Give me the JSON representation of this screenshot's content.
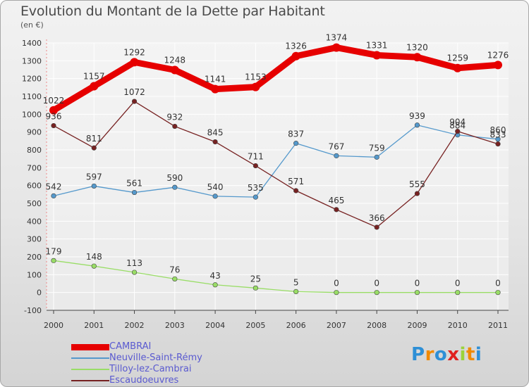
{
  "header": {
    "title": "Evolution du Montant de la Dette par Habitant",
    "unit": "(en €)"
  },
  "logo": {
    "text": "Proxiti"
  },
  "chart_data": {
    "type": "line",
    "title": "Evolution du Montant de la Dette par Habitant",
    "subtitle": "(en €)",
    "x": [
      "2000",
      "2001",
      "2002",
      "2003",
      "2004",
      "2005",
      "2006",
      "2007",
      "2008",
      "2009",
      "2010",
      "2011"
    ],
    "ylim": [
      -100,
      1400
    ],
    "yticks": [
      -100,
      0,
      100,
      200,
      300,
      400,
      500,
      600,
      700,
      800,
      900,
      1000,
      1100,
      1200,
      1300,
      1400
    ],
    "grid": true,
    "legend_position": "bottom-left",
    "series": [
      {
        "name": "CAMBRAI",
        "color": "#e60000",
        "values": [
          1022,
          1157,
          1292,
          1248,
          1141,
          1153,
          1326,
          1374,
          1331,
          1320,
          1259,
          1276
        ]
      },
      {
        "name": "Neuville-Saint-Rémy",
        "color": "#5599cc",
        "values": [
          542,
          597,
          561,
          590,
          540,
          535,
          837,
          767,
          759,
          939,
          884,
          860
        ]
      },
      {
        "name": "Tilloy-lez-Cambrai",
        "color": "#99dd66",
        "values": [
          179,
          148,
          113,
          76,
          43,
          25,
          5,
          0,
          0,
          0,
          0,
          0
        ]
      },
      {
        "name": "Escaudoeuvres",
        "color": "#772222",
        "values": [
          936,
          811,
          1072,
          932,
          845,
          711,
          571,
          465,
          366,
          555,
          904,
          833
        ]
      }
    ]
  }
}
